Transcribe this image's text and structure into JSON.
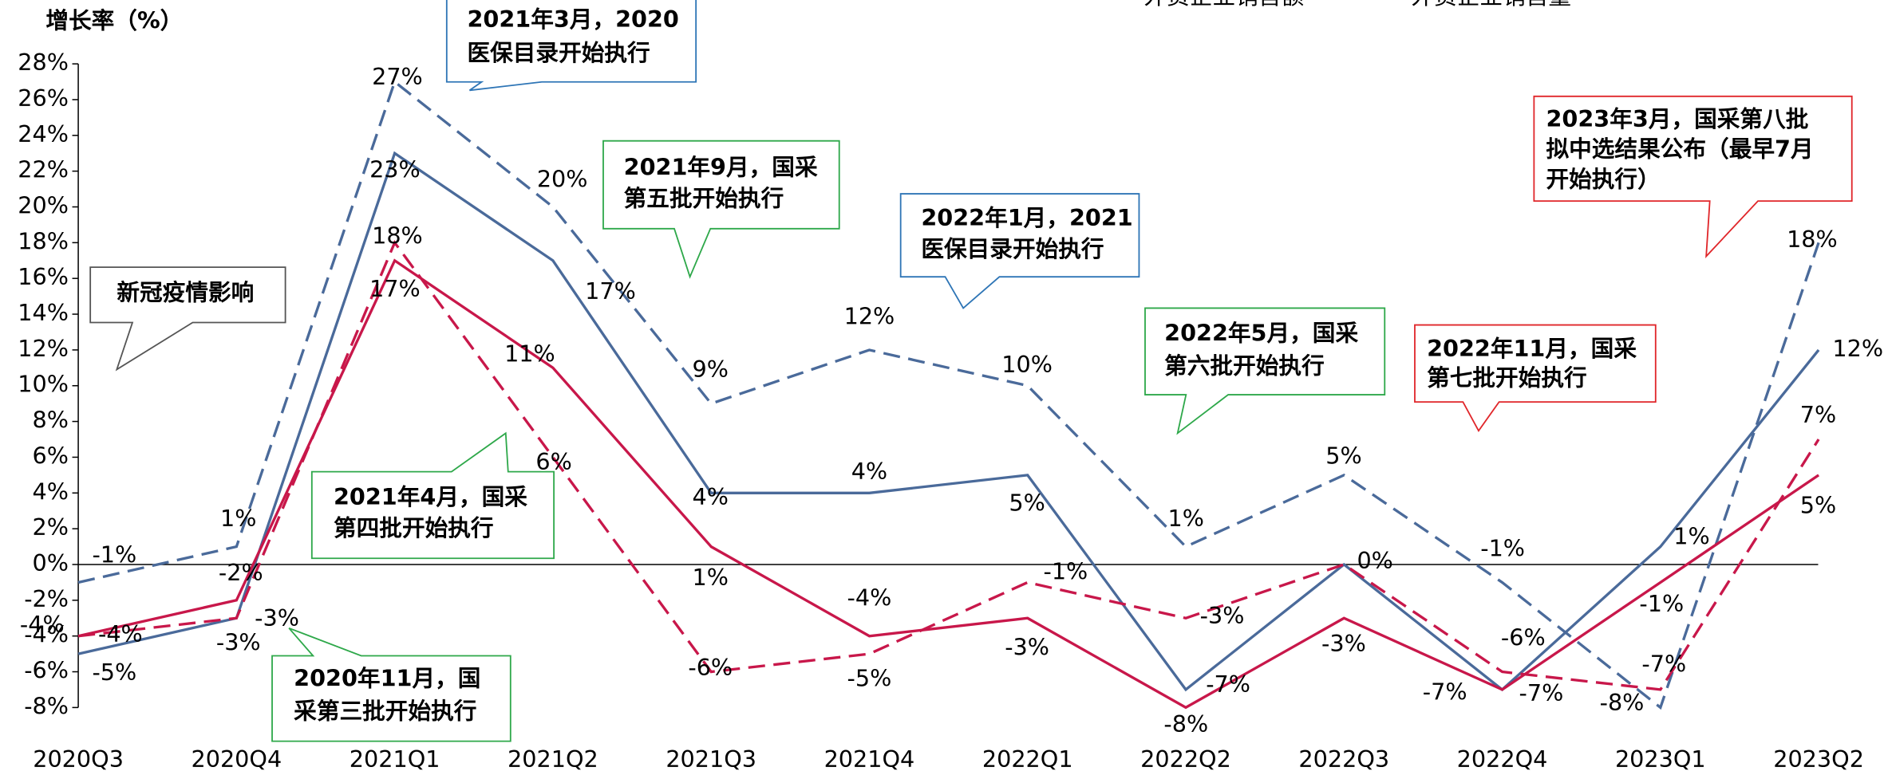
{
  "chart_data": {
    "type": "line",
    "ylabel": "增长率（%）",
    "categories": [
      "2020Q3",
      "2020Q4",
      "2021Q1",
      "2021Q2",
      "2021Q3",
      "2021Q4",
      "2022Q1",
      "2022Q2",
      "2022Q3",
      "2022Q4",
      "2023Q1",
      "2023Q2"
    ],
    "ylim": [
      -8,
      28
    ],
    "yticks": [
      {
        "value": -8,
        "label": "-8%"
      },
      {
        "value": -6,
        "label": "-6%"
      },
      {
        "value": -4,
        "label": "-4%"
      },
      {
        "value": -2,
        "label": "-2%"
      },
      {
        "value": 0,
        "label": "0%"
      },
      {
        "value": 2,
        "label": "2%"
      },
      {
        "value": 4,
        "label": "4%"
      },
      {
        "value": 6,
        "label": "6%"
      },
      {
        "value": 8,
        "label": "8%"
      },
      {
        "value": 10,
        "label": "10%"
      },
      {
        "value": 12,
        "label": "12%"
      },
      {
        "value": 14,
        "label": "14%"
      },
      {
        "value": 16,
        "label": "16%"
      },
      {
        "value": 18,
        "label": "18%"
      },
      {
        "value": 20,
        "label": "20%"
      },
      {
        "value": 22,
        "label": "22%"
      },
      {
        "value": 24,
        "label": "24%"
      },
      {
        "value": 26,
        "label": "26%"
      },
      {
        "value": 28,
        "label": "28%"
      }
    ],
    "legend_texts": [
      "外资企业销售额",
      "外资企业销售量"
    ],
    "series": [
      {
        "color": "#4a6a9a",
        "dash": true,
        "values": [
          -1,
          1,
          27,
          20,
          9,
          12,
          10,
          1,
          5,
          -1,
          -8,
          18
        ],
        "value_labels": [
          "-1%",
          "1%",
          "27%",
          "20%",
          "9%",
          "12%",
          "10%",
          "1%",
          "5%",
          "-1%",
          "-8%",
          "18%"
        ]
      },
      {
        "color": "#4a6a9a",
        "dash": false,
        "values": [
          -5,
          -3,
          23,
          17,
          4,
          4,
          5,
          -7,
          0,
          -7,
          1,
          12
        ],
        "value_labels": [
          "-5%",
          "-3%",
          "23%",
          "17%",
          "4%",
          "4%",
          "5%",
          "-7%",
          null,
          "-7%",
          "1%",
          "12%"
        ]
      },
      {
        "name": "外资企业销售额",
        "color": "#c8174a",
        "dash": false,
        "values": [
          -4,
          -2,
          17,
          11,
          1,
          -4,
          -3,
          -8,
          -3,
          -7,
          -1,
          5
        ],
        "value_labels": [
          "-4%",
          "-2%",
          "17%",
          "11%",
          "1%",
          "-4%",
          "-3%",
          "-8%",
          "-3%",
          "-7%",
          "-1%",
          "5%"
        ]
      },
      {
        "name": "外资企业销售量",
        "color": "#c8174a",
        "dash": true,
        "values": [
          -4,
          -3,
          18,
          6,
          -6,
          -5,
          -1,
          -3,
          0,
          -6,
          -7,
          7
        ],
        "value_labels": [
          "-4%",
          "-3%",
          "18%",
          "6%",
          "-6%",
          "-5%",
          "-1%",
          "-3%",
          "0%",
          "-6%",
          "-7%",
          "7%"
        ]
      }
    ],
    "annotations": [
      {
        "lines": [
          "2021年3月，2020",
          "医保目录开始执行"
        ],
        "color": "#2e75b6"
      },
      {
        "lines": [
          "2021年9月，国采",
          "第五批开始执行"
        ],
        "color": "#2ea84a"
      },
      {
        "lines": [
          "2022年1月，2021",
          "医保目录开始执行"
        ],
        "color": "#2e75b6"
      },
      {
        "lines": [
          "新冠疫情影响"
        ],
        "color": "#555555"
      },
      {
        "lines": [
          "2022年5月，国采",
          "第六批开始执行"
        ],
        "color": "#2ea84a"
      },
      {
        "lines": [
          "2022年11月，国采",
          "第七批开始执行"
        ],
        "color": "#e0262a"
      },
      {
        "lines": [
          "2023年3月，国采第八批",
          "拟中选结果公布（最早7月",
          "开始执行）"
        ],
        "color": "#e0262a"
      },
      {
        "lines": [
          "2021年4月，国采",
          "第四批开始执行"
        ],
        "color": "#2ea84a"
      },
      {
        "lines": [
          "2020年11月，国",
          "采第三批开始执行"
        ],
        "color": "#2ea84a"
      }
    ]
  }
}
